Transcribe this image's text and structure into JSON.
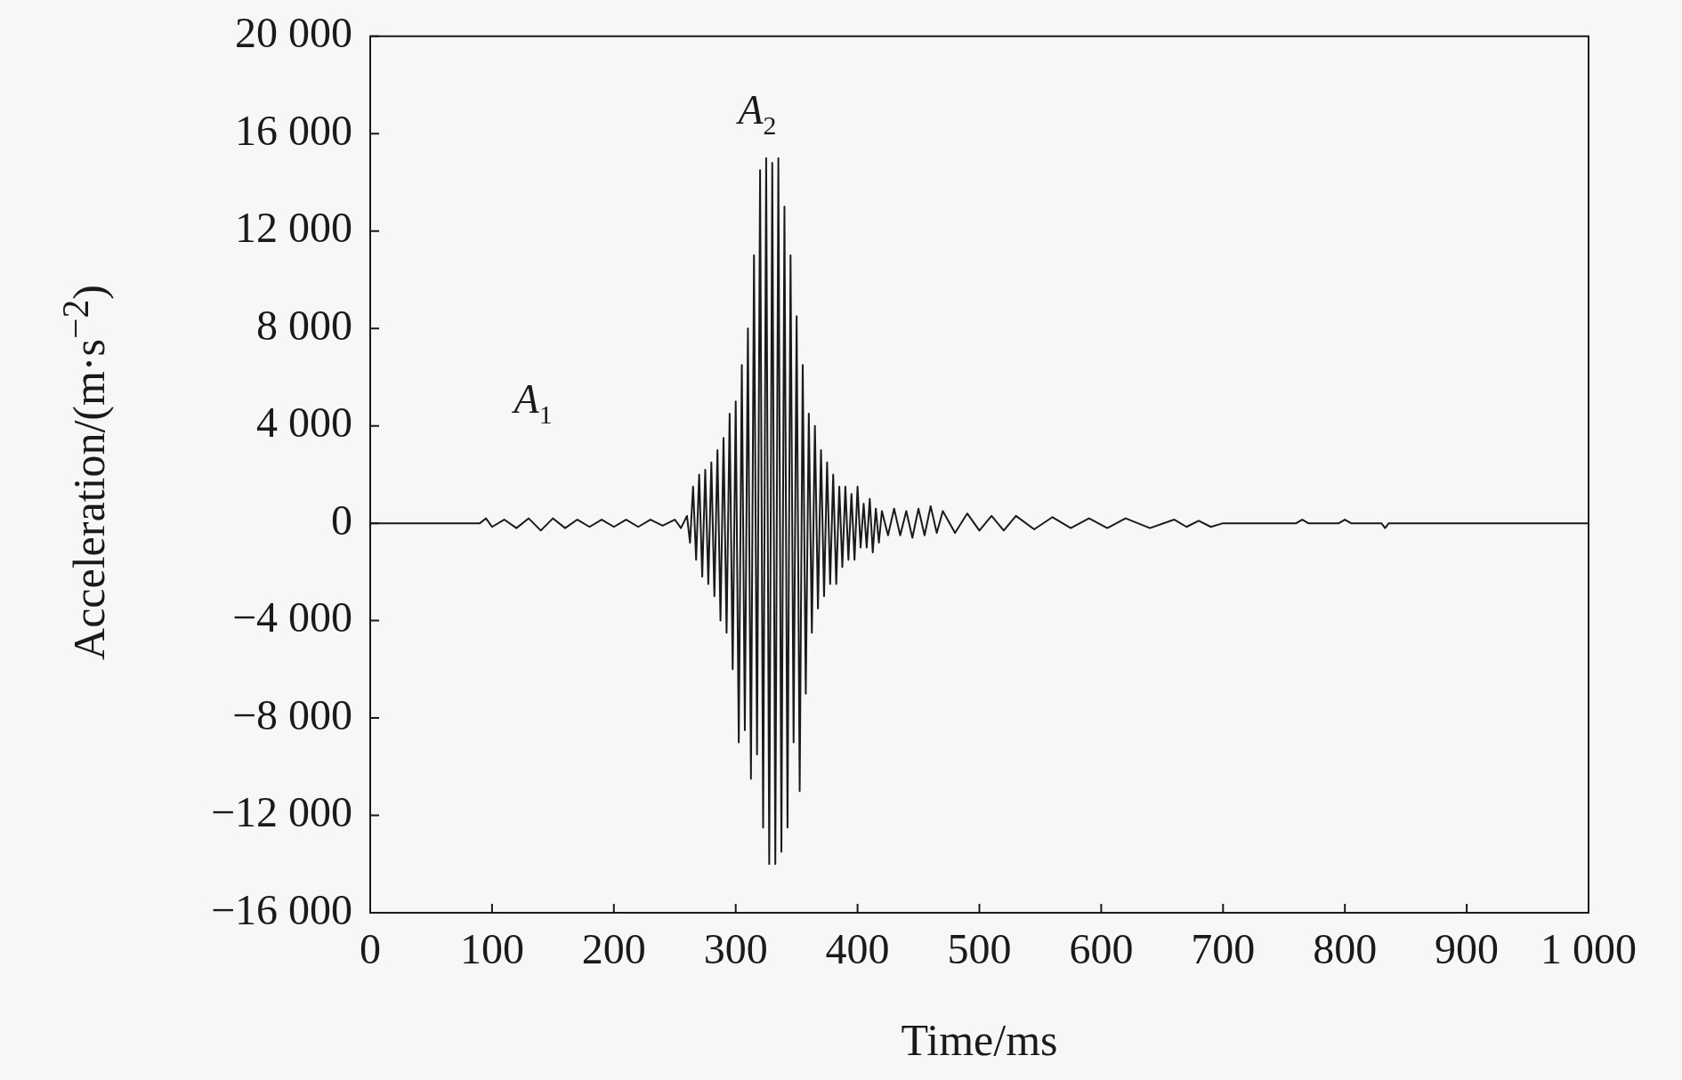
{
  "chart_data": {
    "type": "line",
    "xlabel": "Time/ms",
    "ylabel": "Acceleration/(m·s$^{−2}$)",
    "xlim": [
      0,
      1000
    ],
    "xticks": [
      0,
      100,
      200,
      300,
      400,
      500,
      600,
      700,
      800,
      900,
      {
        "value": 1000,
        "label": "1 000"
      }
    ],
    "ylim": [
      -16000,
      20000
    ],
    "yticks": [
      {
        "value": -16000,
        "label": "−16 000"
      },
      {
        "value": -12000,
        "label": "−12 000"
      },
      {
        "value": -8000,
        "label": "−8 000"
      },
      {
        "value": -4000,
        "label": "−4 000"
      },
      0,
      {
        "value": 4000,
        "label": "4 000"
      },
      {
        "value": 8000,
        "label": "8 000"
      },
      {
        "value": 12000,
        "label": "12 000"
      },
      {
        "value": 16000,
        "label": "16 000"
      },
      {
        "value": 20000,
        "label": "20 000"
      }
    ],
    "grid": false,
    "legend": false,
    "marker": "none",
    "line_style": "solid",
    "annotations": [
      "A$_{1}$",
      "A$_{2}$"
    ],
    "series": [
      {
        "color": "#1a1a1a",
        "x": [
          0,
          90,
          95,
          100,
          110,
          120,
          130,
          140,
          150,
          160,
          170,
          180,
          190,
          200,
          210,
          220,
          230,
          240,
          250,
          255,
          260,
          262.5,
          265,
          267.5,
          270,
          272.5,
          275,
          277.5,
          280,
          282.5,
          285,
          287.5,
          290,
          292.5,
          295,
          297.5,
          300,
          302.5,
          305,
          307.5,
          310,
          312.5,
          315,
          317.5,
          320,
          322.5,
          325,
          327.5,
          330,
          332.5,
          335,
          337.5,
          340,
          342.5,
          345,
          347.5,
          350,
          352.5,
          355,
          357.5,
          360,
          362.5,
          365,
          367.5,
          370,
          372.5,
          375,
          377.5,
          380,
          382.5,
          385,
          387.5,
          390,
          392.5,
          395,
          397.5,
          400,
          402.5,
          405,
          407.5,
          410,
          412.5,
          415,
          417.5,
          420,
          425,
          430,
          435,
          440,
          445,
          450,
          455,
          460,
          465,
          470,
          480,
          490,
          500,
          510,
          520,
          530,
          545,
          560,
          575,
          590,
          605,
          620,
          640,
          660,
          670,
          680,
          690,
          700,
          760,
          765,
          770,
          795,
          800,
          805,
          830,
          833,
          836,
          1000
        ],
        "values": [
          0,
          0,
          200,
          -150,
          150,
          -200,
          200,
          -300,
          200,
          -200,
          150,
          -150,
          150,
          -150,
          150,
          -150,
          150,
          -100,
          150,
          -200,
          300,
          -800,
          1500,
          -1500,
          2000,
          -2200,
          2200,
          -2500,
          2500,
          -3000,
          3000,
          -4000,
          3500,
          -4500,
          4500,
          -6000,
          5000,
          -9000,
          6500,
          -8500,
          8000,
          -10500,
          11000,
          -9500,
          14500,
          -12500,
          15000,
          -14000,
          14800,
          -14000,
          15000,
          -13500,
          13000,
          -12500,
          11000,
          -9000,
          8500,
          -11000,
          6500,
          -7000,
          4500,
          -4500,
          4000,
          -3500,
          3000,
          -3000,
          2500,
          -2500,
          2000,
          -2500,
          1500,
          -1800,
          1500,
          -1500,
          1200,
          -1500,
          1500,
          -1000,
          800,
          -1000,
          1000,
          -1200,
          600,
          -800,
          500,
          -500,
          600,
          -500,
          500,
          -600,
          600,
          -500,
          700,
          -400,
          500,
          -400,
          400,
          -300,
          300,
          -300,
          300,
          -250,
          250,
          -200,
          200,
          -200,
          200,
          -200,
          150,
          -150,
          100,
          -150,
          0,
          0,
          150,
          0,
          0,
          150,
          0,
          0,
          -200,
          0,
          0
        ]
      }
    ]
  }
}
